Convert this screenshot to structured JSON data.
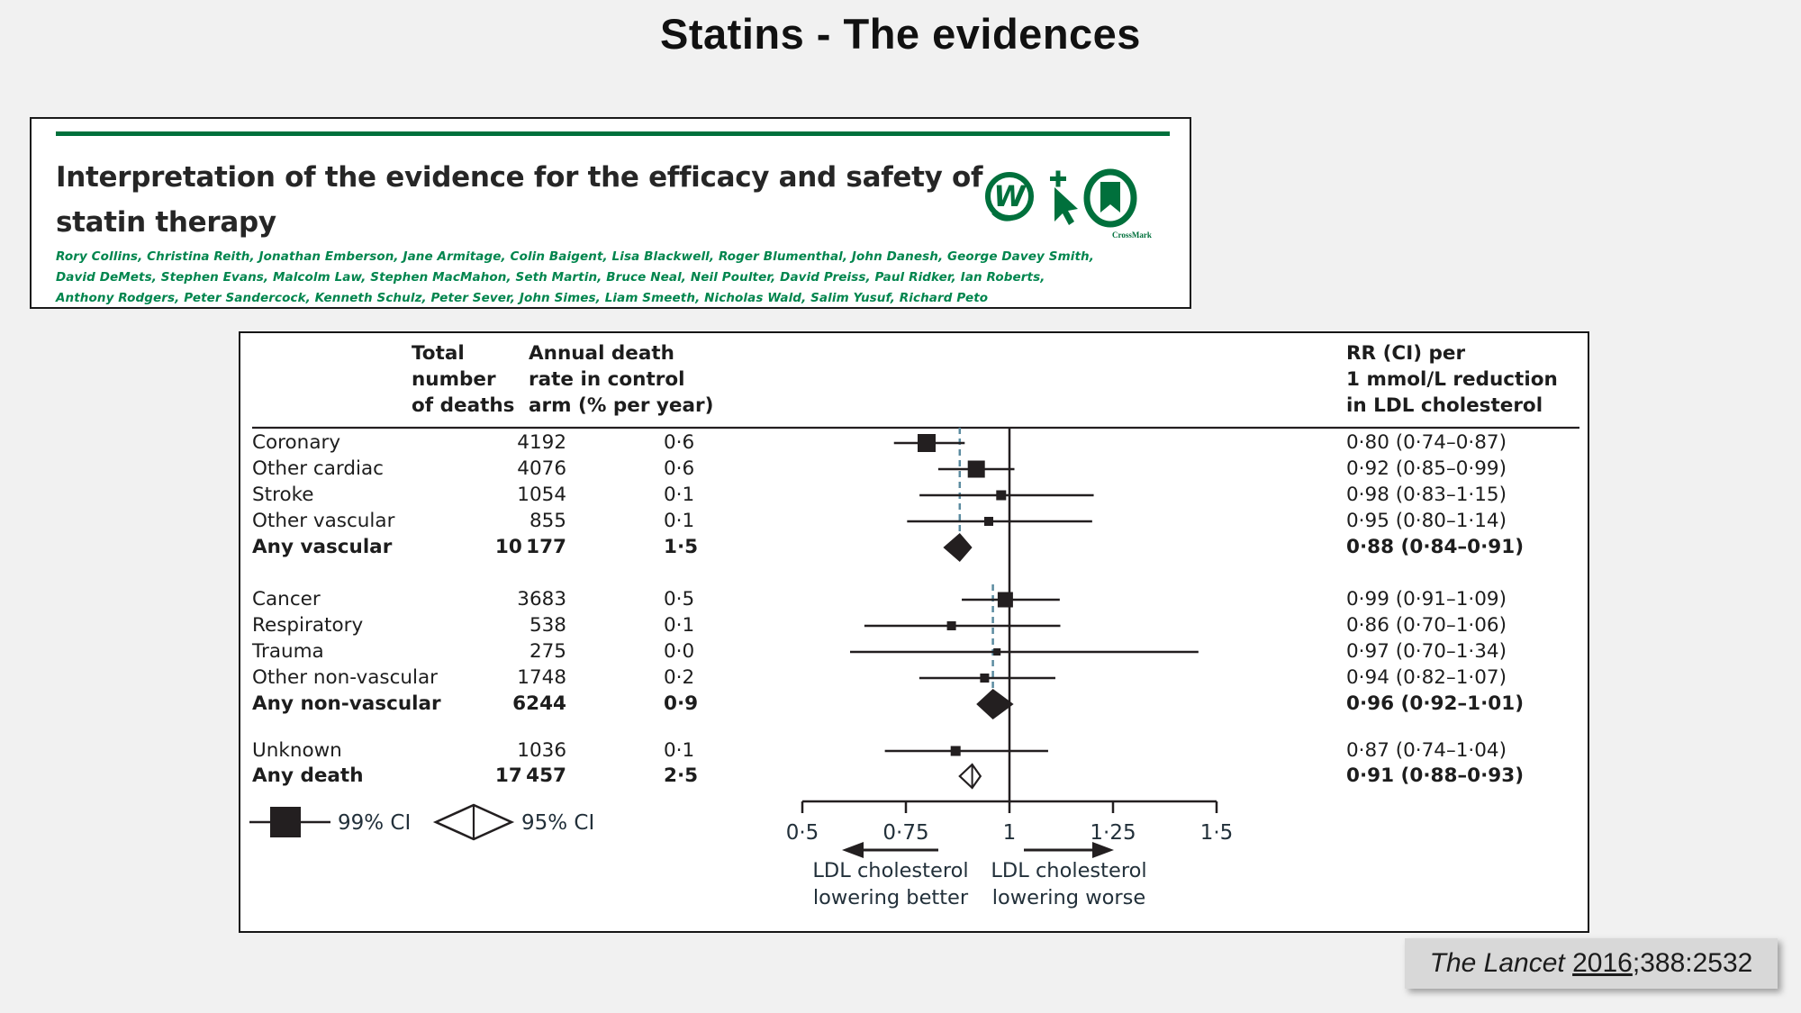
{
  "page": {
    "title": "Statins - The evidences",
    "background_color": "#f1f1f1"
  },
  "paper_header": {
    "title_lines": [
      "Interpretation of the evidence for the efficacy and safety of",
      "statin therapy"
    ],
    "authors_lines": [
      "Rory Collins, Christina Reith, Jonathan Emberson, Jane Armitage, Colin Baigent, Lisa Blackwell, Roger Blumenthal, John Danesh, George Davey Smith,",
      "David DeMets, Stephen Evans, Malcolm Law, Stephen MacMahon, Seth Martin, Bruce Neal, Neil Poulter, David Preiss, Paul Ridker, Ian Roberts,",
      "Anthony Rodgers, Peter Sandercock, Kenneth Schulz, Peter Sever, John Simes, Liam Smeeth, Nicholas Wald, Salim Yusuf, Richard Peto"
    ],
    "icons": [
      "web-extra-icon",
      "cursor-plus-icon",
      "crossmark-icon"
    ],
    "crossmark_label": "CrossMark",
    "accent_green": "#00703c",
    "author_green": "#00854d"
  },
  "citation": {
    "journal": "The Lancet",
    "space": " ",
    "year": "2016",
    "suffix": ";388:2532"
  },
  "chart_data": {
    "type": "forest",
    "columns": {
      "deaths_header": "Total\nnumber\nof deaths",
      "rate_header": "Annual death\nrate in control\narm (% per year)",
      "rr_header": "RR (CI) per\n1 mmol/L reduction\nin LDL cholesterol"
    },
    "x_axis": {
      "scale": "linear",
      "range": [
        0.5,
        1.5
      ],
      "tick_values": [
        0.5,
        0.75,
        1,
        1.25,
        1.5
      ],
      "tick_labels": [
        "0·5",
        "0·75",
        "1",
        "1·25",
        "1·5"
      ],
      "reference_value": 1
    },
    "dashed_guides": [
      {
        "value": 0.88,
        "from_row": 0,
        "to_row": 4
      },
      {
        "value": 0.96,
        "from_row": 5,
        "to_row": 9
      }
    ],
    "guide_color": "#5b8ba0",
    "marker_color": "#231f20",
    "legend": [
      {
        "marker": "square",
        "label": "99% CI"
      },
      {
        "marker": "open-diamond",
        "label": "95% CI"
      }
    ],
    "direction_labels": {
      "left": "LDL cholesterol\nlowering better",
      "right": "LDL cholesterol\nlowering worse"
    },
    "rows": [
      {
        "label": "Coronary",
        "deaths": "4192",
        "rate": "0·6",
        "rr": 0.8,
        "ci_low": 0.74,
        "ci_high": 0.87,
        "rr_text": "0·80 (0·74–0·87)",
        "marker": "square",
        "size": 20,
        "bold": false
      },
      {
        "label": "Other cardiac",
        "deaths": "4076",
        "rate": "0·6",
        "rr": 0.92,
        "ci_low": 0.85,
        "ci_high": 0.99,
        "rr_text": "0·92 (0·85–0·99)",
        "marker": "square",
        "size": 19,
        "bold": false
      },
      {
        "label": "Stroke",
        "deaths": "1054",
        "rate": "0·1",
        "rr": 0.98,
        "ci_low": 0.83,
        "ci_high": 1.15,
        "rr_text": "0·98 (0·83–1·15)",
        "marker": "square",
        "size": 11,
        "bold": false
      },
      {
        "label": "Other vascular",
        "deaths": "855",
        "rate": "0·1",
        "rr": 0.95,
        "ci_low": 0.8,
        "ci_high": 1.14,
        "rr_text": "0·95 (0·80–1·14)",
        "marker": "square",
        "size": 10,
        "bold": false
      },
      {
        "label": "Any vascular",
        "deaths": "10 177",
        "rate": "1·5",
        "rr": 0.88,
        "ci_low": 0.84,
        "ci_high": 0.91,
        "rr_text": "0·88 (0·84–0·91)",
        "marker": "diamond",
        "size": 16,
        "bold": true
      },
      {
        "label": "Cancer",
        "deaths": "3683",
        "rate": "0·5",
        "rr": 0.99,
        "ci_low": 0.91,
        "ci_high": 1.09,
        "rr_text": "0·99 (0·91–1·09)",
        "marker": "square",
        "size": 17,
        "bold": false
      },
      {
        "label": "Respiratory",
        "deaths": "538",
        "rate": "0·1",
        "rr": 0.86,
        "ci_low": 0.7,
        "ci_high": 1.06,
        "rr_text": "0·86 (0·70–1·06)",
        "marker": "square",
        "size": 10,
        "bold": false
      },
      {
        "label": "Trauma",
        "deaths": "275",
        "rate": "0·0",
        "rr": 0.97,
        "ci_low": 0.7,
        "ci_high": 1.34,
        "rr_text": "0·97 (0·70–1·34)",
        "marker": "square",
        "size": 8,
        "bold": false
      },
      {
        "label": "Other non-vascular",
        "deaths": "1748",
        "rate": "0·2",
        "rr": 0.94,
        "ci_low": 0.82,
        "ci_high": 1.07,
        "rr_text": "0·94 (0·82–1·07)",
        "marker": "square",
        "size": 10,
        "bold": false
      },
      {
        "label": "Any non-vascular",
        "deaths": "6244",
        "rate": "0·9",
        "rr": 0.96,
        "ci_low": 0.92,
        "ci_high": 1.01,
        "rr_text": "0·96 (0·92–1·01)",
        "marker": "diamond",
        "size": 17,
        "bold": true
      },
      {
        "label": "Unknown",
        "deaths": "1036",
        "rate": "0·1",
        "rr": 0.87,
        "ci_low": 0.74,
        "ci_high": 1.04,
        "rr_text": "0·87 (0·74–1·04)",
        "marker": "square",
        "size": 11,
        "bold": false
      },
      {
        "label": "Any death",
        "deaths": "17 457",
        "rate": "2·5",
        "rr": 0.91,
        "ci_low": 0.88,
        "ci_high": 0.93,
        "rr_text": "0·91 (0·88–0·93)",
        "marker": "open-diamond",
        "size": 13,
        "bold": true
      }
    ]
  }
}
